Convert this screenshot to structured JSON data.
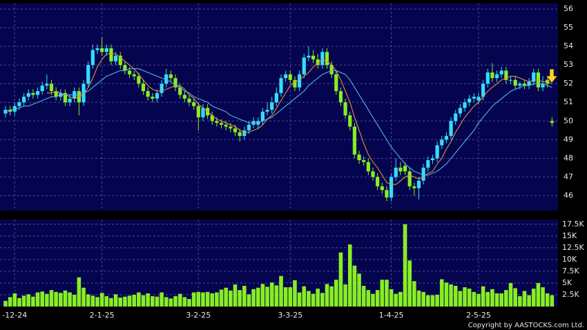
{
  "chart_data": [
    {
      "type": "candlestick",
      "up_color": "#33ddff",
      "down_color": "#88ee22",
      "grid": true,
      "ylim": [
        45.2,
        56.3
      ],
      "yticks": [
        46,
        47,
        48,
        49,
        50,
        51,
        52,
        53,
        54,
        55,
        56
      ],
      "open": [
        50.4,
        50.6,
        50.5,
        50.8,
        51.0,
        51.3,
        51.5,
        51.4,
        51.6,
        51.9,
        52.0,
        51.6,
        51.3,
        51.5,
        51.0,
        51.2,
        51.6,
        51.0,
        52.0,
        53.0,
        53.8,
        53.9,
        53.7,
        53.9,
        53.2,
        53.5,
        53.0,
        52.7,
        52.5,
        52.4,
        52.0,
        51.6,
        51.3,
        51.2,
        51.5,
        52.0,
        52.5,
        52.3,
        51.8,
        51.4,
        51.2,
        51.0,
        50.8,
        50.2,
        50.7,
        50.3,
        50.0,
        49.9,
        49.8,
        49.7,
        49.6,
        49.4,
        49.2,
        49.5,
        49.8,
        49.8,
        50.0,
        50.5,
        50.6,
        51.0,
        51.5,
        52.3,
        52.5,
        52.2,
        51.8,
        52.5,
        53.4,
        53.5,
        53.3,
        53.0,
        53.7,
        53.0,
        52.5,
        51.6,
        51.0,
        50.3,
        49.7,
        48.2,
        47.9,
        47.8,
        47.3,
        47.0,
        46.5,
        46.3,
        45.9,
        47.0,
        47.5,
        47.6,
        47.3,
        46.5,
        46.4,
        46.8,
        47.5,
        47.9,
        48.0,
        48.7,
        49.0,
        49.2,
        50.0,
        50.4,
        50.7,
        51.0,
        51.2,
        51.1,
        51.3,
        52.0,
        52.6,
        52.3,
        52.5,
        52.7,
        52.2,
        52.2,
        51.9,
        52.0,
        51.9,
        52.1,
        52.6,
        51.8,
        52.2,
        50.0
      ],
      "high": [
        50.8,
        50.8,
        51.0,
        51.2,
        51.5,
        51.7,
        51.7,
        51.8,
        52.1,
        52.5,
        52.2,
        51.8,
        51.7,
        51.7,
        51.4,
        51.8,
        51.8,
        52.2,
        53.2,
        54.1,
        54.1,
        54.5,
        54.1,
        54.1,
        53.7,
        53.7,
        53.2,
        52.9,
        52.7,
        52.6,
        52.2,
        51.8,
        51.5,
        51.7,
        52.2,
        52.8,
        52.7,
        52.5,
        52.0,
        51.6,
        51.4,
        51.2,
        51.0,
        50.9,
        50.9,
        50.5,
        50.2,
        50.1,
        50.0,
        49.9,
        49.8,
        49.6,
        49.7,
        50.0,
        50.2,
        50.2,
        50.7,
        51.0,
        51.3,
        51.8,
        52.5,
        52.7,
        52.7,
        52.4,
        52.7,
        53.6,
        54.0,
        53.8,
        53.6,
        53.9,
        53.9,
        53.2,
        52.7,
        51.8,
        51.2,
        50.5,
        49.9,
        48.4,
        48.1,
        48.0,
        47.5,
        47.2,
        46.7,
        46.5,
        47.2,
        48.0,
        47.8,
        47.8,
        47.5,
        46.7,
        47.0,
        47.7,
        48.1,
        48.2,
        48.9,
        49.2,
        49.4,
        50.2,
        50.6,
        50.9,
        51.2,
        51.4,
        51.5,
        51.5,
        52.2,
        52.8,
        53.1,
        52.7,
        52.9,
        52.9,
        52.4,
        52.4,
        52.1,
        52.2,
        52.3,
        52.8,
        52.8,
        52.4,
        52.4,
        50.2
      ],
      "low": [
        50.2,
        50.3,
        50.3,
        50.6,
        50.8,
        51.1,
        51.2,
        51.2,
        51.4,
        51.7,
        51.4,
        51.1,
        51.1,
        50.8,
        50.8,
        51.0,
        50.3,
        50.8,
        51.8,
        52.8,
        53.6,
        53.5,
        53.5,
        53.0,
        53.0,
        52.8,
        52.5,
        52.3,
        52.2,
        51.8,
        51.4,
        51.1,
        51.0,
        51.0,
        51.3,
        51.8,
        52.1,
        51.6,
        51.2,
        51.0,
        50.8,
        50.6,
        49.5,
        50.0,
        50.1,
        49.8,
        49.7,
        49.6,
        49.5,
        49.4,
        49.2,
        48.9,
        49.0,
        49.3,
        49.6,
        49.6,
        49.8,
        50.3,
        50.4,
        50.8,
        51.3,
        52.1,
        52.0,
        51.6,
        51.6,
        52.3,
        53.2,
        53.1,
        52.8,
        52.8,
        52.8,
        52.3,
        51.4,
        50.8,
        50.1,
        49.5,
        48.0,
        47.7,
        47.6,
        47.1,
        46.8,
        46.3,
        46.1,
        45.7,
        45.7,
        46.8,
        47.1,
        47.1,
        46.3,
        46.0,
        45.8,
        46.6,
        47.3,
        47.7,
        47.8,
        48.5,
        48.8,
        49.0,
        49.8,
        50.2,
        50.5,
        50.8,
        51.0,
        50.9,
        51.1,
        51.8,
        52.1,
        52.1,
        52.3,
        52.0,
        52.0,
        51.7,
        51.7,
        51.7,
        51.7,
        51.9,
        51.6,
        51.6,
        51.8,
        49.7
      ],
      "close": [
        50.6,
        50.5,
        50.8,
        51.0,
        51.3,
        51.5,
        51.4,
        51.6,
        51.9,
        52.0,
        51.6,
        51.3,
        51.5,
        51.0,
        51.2,
        51.6,
        51.0,
        52.0,
        53.0,
        53.8,
        53.9,
        53.7,
        53.9,
        53.2,
        53.5,
        53.0,
        52.7,
        52.5,
        52.4,
        52.0,
        51.6,
        51.3,
        51.2,
        51.5,
        52.0,
        52.5,
        52.3,
        51.8,
        51.4,
        51.2,
        51.0,
        50.8,
        50.2,
        50.7,
        50.3,
        50.0,
        49.9,
        49.8,
        49.7,
        49.6,
        49.4,
        49.2,
        49.5,
        49.8,
        50.0,
        50.0,
        50.5,
        50.6,
        51.0,
        51.5,
        52.3,
        52.5,
        52.2,
        51.8,
        52.5,
        53.4,
        53.5,
        53.3,
        53.0,
        53.7,
        53.0,
        52.5,
        51.6,
        51.0,
        50.3,
        49.7,
        48.2,
        47.9,
        47.8,
        47.3,
        47.0,
        46.5,
        46.3,
        45.9,
        47.0,
        47.5,
        47.3,
        47.3,
        46.5,
        46.4,
        46.8,
        47.5,
        47.9,
        48.0,
        48.7,
        49.0,
        49.2,
        50.0,
        50.4,
        50.7,
        51.0,
        51.2,
        51.3,
        51.3,
        52.0,
        52.6,
        52.3,
        52.5,
        52.7,
        52.2,
        52.2,
        51.9,
        52.0,
        51.9,
        52.1,
        52.6,
        51.8,
        52.0,
        52.0,
        49.9
      ],
      "series": [
        {
          "color": "#e8913a",
          "values": [
            null,
            null,
            null,
            null,
            null,
            null,
            null,
            null,
            null,
            51.5,
            51.5,
            51.6,
            51.5,
            51.4,
            51.3,
            51.2,
            51.3,
            51.4,
            51.8,
            52.3,
            52.9,
            53.3,
            53.6,
            53.6,
            53.6,
            53.4,
            53.2,
            53.0,
            52.8,
            52.5,
            52.2,
            51.9,
            51.7,
            51.6,
            51.6,
            51.7,
            51.8,
            51.9,
            51.9,
            51.7,
            51.4,
            51.2,
            50.9,
            50.7,
            50.5,
            50.3,
            50.1,
            50.0,
            49.9,
            49.8,
            49.7,
            49.5,
            49.4,
            49.4,
            49.5,
            49.6,
            49.8,
            50.1,
            50.3,
            50.7,
            51.1,
            51.5,
            51.9,
            52.1,
            52.2,
            52.4,
            52.6,
            52.9,
            53.1,
            53.3,
            53.2,
            53.0,
            52.7,
            52.2,
            51.6,
            51.0,
            50.2,
            49.5,
            48.8,
            48.2,
            47.8,
            47.5,
            47.1,
            46.7,
            46.6,
            46.6,
            46.8,
            47.0,
            47.1,
            47.0,
            46.9,
            47.0,
            47.2,
            47.3,
            47.7,
            48.0,
            48.5,
            48.9,
            49.4,
            49.8,
            50.2,
            50.5,
            50.8,
            51.0,
            51.3,
            51.6,
            51.8,
            52.0,
            52.2,
            52.3,
            52.4,
            52.4,
            52.3,
            52.2,
            52.1,
            52.2,
            52.2,
            52.1,
            52.1,
            52.0
          ]
        },
        {
          "color": "#5ab4e6",
          "values": [
            50.5,
            50.6,
            50.6,
            50.7,
            50.8,
            50.8,
            50.9,
            51.0,
            51.1,
            51.2,
            51.3,
            51.3,
            51.4,
            51.4,
            51.4,
            51.4,
            51.4,
            51.5,
            51.6,
            51.8,
            52.0,
            52.2,
            52.4,
            52.5,
            52.6,
            52.7,
            52.7,
            52.8,
            52.8,
            52.8,
            52.7,
            52.6,
            52.5,
            52.4,
            52.3,
            52.2,
            52.1,
            51.9,
            51.8,
            51.6,
            51.5,
            51.3,
            51.2,
            51.1,
            51.0,
            50.8,
            50.7,
            50.6,
            50.5,
            50.3,
            50.2,
            50.1,
            50.0,
            49.9,
            49.9,
            49.9,
            50.0,
            50.1,
            50.2,
            50.4,
            50.6,
            50.8,
            51.0,
            51.2,
            51.4,
            51.6,
            51.9,
            52.1,
            52.3,
            52.5,
            52.6,
            52.7,
            52.7,
            52.6,
            52.5,
            52.2,
            51.8,
            51.4,
            51.0,
            50.6,
            50.2,
            49.8,
            49.4,
            49.0,
            48.6,
            48.3,
            48.0,
            47.7,
            47.5,
            47.3,
            47.2,
            47.1,
            47.1,
            47.2,
            47.3,
            47.5,
            47.7,
            48.0,
            48.3,
            48.6,
            48.9,
            49.2,
            49.5,
            49.9,
            50.2,
            50.5,
            50.8,
            51.0,
            51.2,
            51.4,
            51.6,
            51.7,
            51.8,
            51.9,
            51.9,
            52.0,
            52.0,
            52.0,
            51.9,
            51.8
          ]
        }
      ]
    },
    {
      "type": "bar",
      "color": "#88ee22",
      "grid": true,
      "ylim": [
        0,
        18500
      ],
      "yticks": [
        {
          "value": 2500,
          "label": "2.5K"
        },
        {
          "value": 5000,
          "label": "5K"
        },
        {
          "value": 7500,
          "label": "7.5K"
        },
        {
          "value": 10000,
          "label": "10K"
        },
        {
          "value": 12500,
          "label": "12.5K"
        },
        {
          "value": 15000,
          "label": "15K"
        },
        {
          "value": 17500,
          "label": "17.5K"
        }
      ],
      "categories": [
        null,
        null,
        "-12-24",
        null,
        null,
        null,
        null,
        null,
        null,
        null,
        null,
        null,
        null,
        null,
        null,
        null,
        null,
        null,
        null,
        null,
        null,
        "2-1-25",
        null,
        null,
        null,
        null,
        null,
        null,
        null,
        null,
        null,
        null,
        null,
        null,
        null,
        null,
        null,
        null,
        null,
        null,
        null,
        null,
        "3-2-25",
        null,
        null,
        null,
        null,
        null,
        null,
        null,
        null,
        null,
        null,
        null,
        null,
        null,
        null,
        null,
        null,
        null,
        null,
        null,
        "3-3-25",
        null,
        null,
        null,
        null,
        null,
        null,
        null,
        null,
        null,
        null,
        null,
        null,
        null,
        null,
        null,
        null,
        null,
        null,
        null,
        null,
        null,
        "1-4-25",
        null,
        null,
        null,
        null,
        null,
        null,
        null,
        null,
        null,
        null,
        null,
        null,
        null,
        null,
        null,
        null,
        null,
        null,
        "2-5-25",
        null,
        null,
        null,
        null,
        null,
        null,
        null,
        null,
        null,
        null,
        null,
        null,
        null,
        null,
        null,
        null
      ],
      "values": [
        1200,
        2000,
        2800,
        1800,
        2300,
        2600,
        2100,
        3000,
        3200,
        2700,
        3500,
        3100,
        2900,
        3400,
        3000,
        2500,
        6200,
        4000,
        2600,
        2300,
        2000,
        2900,
        2200,
        1800,
        2600,
        1900,
        2100,
        2300,
        2500,
        3000,
        2400,
        2800,
        2200,
        2100,
        3000,
        2000,
        1700,
        2200,
        2700,
        2000,
        1600,
        3000,
        3100,
        3000,
        3100,
        2800,
        3000,
        3600,
        4000,
        3400,
        4700,
        3500,
        4400,
        2600,
        3700,
        4000,
        4800,
        4200,
        5100,
        4500,
        6500,
        4100,
        4100,
        5600,
        3000,
        4300,
        3300,
        2700,
        3800,
        2900,
        4800,
        4300,
        5700,
        11500,
        4700,
        13200,
        8700,
        7000,
        4400,
        3500,
        2700,
        3500,
        5700,
        5700,
        3700,
        2700,
        3100,
        17500,
        9800,
        5400,
        3400,
        3100,
        2400,
        2400,
        2500,
        5800,
        5100,
        4700,
        4400,
        3300,
        4100,
        3800,
        3100,
        2700,
        4300,
        3100,
        3700,
        2800,
        2800,
        3500,
        5000,
        3900,
        2200,
        3300,
        2400,
        3800,
        5000,
        4100,
        2800,
        2400
      ],
      "annotation": "Copyright by AASTOCKS.com Ltd."
    }
  ]
}
